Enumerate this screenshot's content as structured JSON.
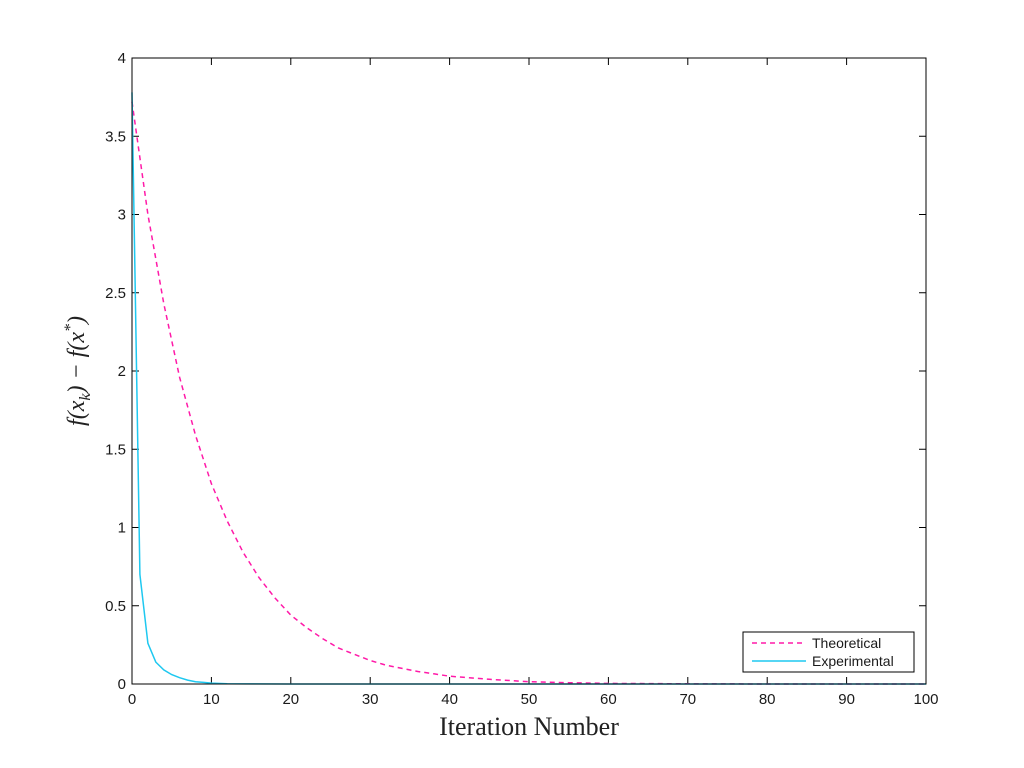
{
  "chart_data": {
    "type": "line",
    "xlabel": "Iteration Number",
    "ylabel": "f(x_k) − f(x*)",
    "ylabel_display": {
      "f1": "f(x",
      "sub": "k",
      "mid": ") − f(x",
      "sup": "*",
      "end": ")"
    },
    "xlim": [
      0,
      100
    ],
    "ylim": [
      0,
      4
    ],
    "xticks": [
      0,
      10,
      20,
      30,
      40,
      50,
      60,
      70,
      80,
      90,
      100
    ],
    "xtick_labels": [
      "0",
      "10",
      "20",
      "30",
      "40",
      "50",
      "60",
      "70",
      "80",
      "90",
      "100"
    ],
    "yticks": [
      0,
      0.5,
      1,
      1.5,
      2,
      2.5,
      3,
      3.5,
      4
    ],
    "ytick_labels": [
      "0",
      "0.5",
      "1",
      "1.5",
      "2",
      "2.5",
      "3",
      "3.5",
      "4"
    ],
    "grid": false,
    "legend_position": "bottom-right",
    "series": [
      {
        "name": "Theoretical",
        "color": "#ff1aa8",
        "style": "dashed",
        "x": [
          0,
          2,
          4,
          6,
          8,
          10,
          12,
          14,
          16,
          18,
          20,
          22,
          24,
          26,
          28,
          30,
          32,
          34,
          36,
          38,
          40,
          45,
          50,
          55,
          60,
          70,
          80,
          90,
          100
        ],
        "y": [
          3.72,
          3.0,
          2.43,
          1.96,
          1.59,
          1.28,
          1.04,
          0.84,
          0.68,
          0.55,
          0.44,
          0.36,
          0.29,
          0.23,
          0.19,
          0.15,
          0.12,
          0.1,
          0.08,
          0.065,
          0.05,
          0.03,
          0.015,
          0.008,
          0.004,
          0.001,
          0.0003,
          0.0001,
          0.0
        ]
      },
      {
        "name": "Experimental",
        "color": "#1ec8f0",
        "style": "solid",
        "x": [
          0,
          1,
          2,
          3,
          4,
          5,
          6,
          7,
          8,
          9,
          10,
          12,
          15,
          20,
          30,
          50,
          100
        ],
        "y": [
          3.78,
          0.7,
          0.26,
          0.14,
          0.09,
          0.06,
          0.04,
          0.025,
          0.015,
          0.01,
          0.006,
          0.002,
          0.0005,
          0.0,
          0.0,
          0.0,
          0.0
        ]
      }
    ]
  }
}
